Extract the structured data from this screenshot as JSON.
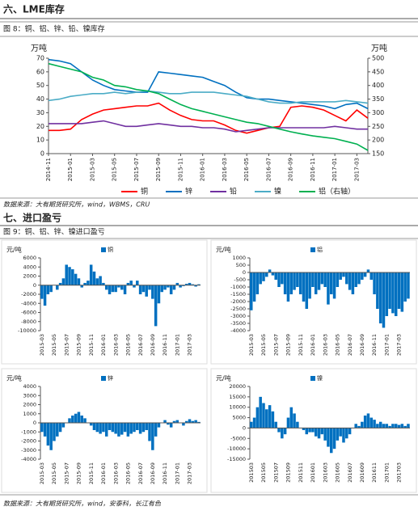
{
  "section6_title": "六、LME库存",
  "figure8_caption": "图 8：铜、铝、锌、铅、镍库存",
  "source1": "数据来源：大有期货研究所，wind，WBMS，CRU",
  "section7_title": "七、进口盈亏",
  "figure9_caption": "图 9：铜、铝、锌、镍进口盈亏",
  "source2": "数据来源：大有期货研究所，wind，安泰科，长江有色",
  "chart_data": [
    {
      "type": "line",
      "ylabel": "万吨",
      "y2label": "万吨",
      "legend": "bottom",
      "categories": [
        "2014-11",
        null,
        "2015-01",
        null,
        "2015-03",
        null,
        "2015-05",
        null,
        "2015-07",
        null,
        "2015-09",
        null,
        "2015-11",
        null,
        "2016-01",
        null,
        "2016-03",
        null,
        "2016-05",
        null,
        "2016-07",
        null,
        "2016-09",
        null,
        "2016-11",
        null,
        "2017-01",
        null,
        "2017-03",
        null
      ],
      "ylim": [
        0,
        70
      ],
      "yticks": [
        0,
        10,
        20,
        30,
        40,
        50,
        60,
        70
      ],
      "y2lim": [
        150,
        500
      ],
      "y2ticks": [
        150,
        200,
        250,
        300,
        350,
        400,
        450,
        500
      ],
      "series": [
        {
          "name": "铜",
          "color": "#ff0000",
          "values": [
            17,
            17,
            18,
            25,
            29,
            32,
            33,
            34,
            35,
            35,
            37,
            32,
            28,
            25,
            24,
            24,
            21,
            17,
            15,
            17,
            19,
            20,
            34,
            35,
            34,
            32,
            28,
            24,
            32,
            26
          ]
        },
        {
          "name": "锌",
          "color": "#0070c0",
          "values": [
            69,
            68,
            66,
            60,
            54,
            50,
            47,
            46,
            45,
            45,
            60,
            59,
            58,
            57,
            56,
            53,
            50,
            45,
            41,
            40,
            40,
            39,
            38,
            37,
            36,
            35,
            33,
            36,
            37,
            33
          ]
        },
        {
          "name": "铅",
          "color": "#7030a0",
          "values": [
            22,
            22,
            22,
            22,
            23,
            24,
            22,
            20,
            20,
            21,
            22,
            21,
            20,
            20,
            19,
            19,
            18,
            16,
            17,
            18,
            19,
            19,
            19,
            19,
            19,
            19,
            20,
            19,
            18,
            18
          ]
        },
        {
          "name": "镍",
          "color": "#4bacc6",
          "values": [
            39,
            40,
            42,
            43,
            44,
            44,
            45,
            44,
            45,
            46,
            45,
            44,
            44,
            45,
            45,
            45,
            44,
            43,
            42,
            40,
            38,
            37,
            37,
            38,
            38,
            38,
            38,
            39,
            38,
            37
          ]
        },
        {
          "name": "铝（右轴）",
          "color": "#00b050",
          "axis": "y2",
          "values": [
            480,
            470,
            460,
            450,
            430,
            420,
            400,
            395,
            385,
            380,
            370,
            350,
            330,
            315,
            305,
            295,
            285,
            275,
            265,
            260,
            250,
            240,
            230,
            222,
            215,
            210,
            205,
            195,
            185,
            162
          ]
        }
      ]
    },
    {
      "type": "bar",
      "ylabel": "元/吨",
      "legend": "top",
      "categories": [
        "2015-03",
        null,
        null,
        null,
        "2015-05",
        null,
        null,
        null,
        "2015-07",
        null,
        null,
        null,
        "2015-09",
        null,
        null,
        null,
        "2015-11",
        null,
        null,
        null,
        "2016-01",
        null,
        null,
        null,
        "2016-03",
        null,
        null,
        null,
        "2016-05",
        null,
        null,
        null,
        "2016-07",
        null,
        null,
        null,
        "2016-09",
        null,
        null,
        null,
        "2016-11",
        null,
        null,
        null,
        "2017-01",
        null,
        null,
        null,
        "2017-03",
        null,
        null,
        null
      ],
      "ylim": [
        -10000,
        6000
      ],
      "yticks": [
        -10000,
        -8000,
        -6000,
        -4000,
        -2000,
        0,
        2000,
        4000,
        6000
      ],
      "series": [
        {
          "name": "铜",
          "color": "#0070c0",
          "values": [
            -3000,
            -4500,
            -2000,
            -1500,
            0,
            -1000,
            500,
            1500,
            4500,
            4000,
            3500,
            2500,
            1500,
            -500,
            500,
            1000,
            4500,
            3000,
            1500,
            2000,
            500,
            -1000,
            -2000,
            -1500,
            -1500,
            -500,
            -1000,
            -2000,
            500,
            1000,
            -500,
            1000,
            -2000,
            -1500,
            -2500,
            -1000,
            -3000,
            -9000,
            -4000,
            -1500,
            -1000,
            -500,
            -2000,
            -1000,
            500,
            -500,
            -200,
            300,
            500,
            200,
            -300,
            200
          ]
        }
      ]
    },
    {
      "type": "bar",
      "ylabel": "元/吨",
      "legend": "top",
      "categories": [
        "2015-03",
        null,
        null,
        null,
        "2015-05",
        null,
        null,
        null,
        "2015-07",
        null,
        null,
        null,
        "2015-09",
        null,
        null,
        null,
        "2015-11",
        null,
        null,
        null,
        "2016-01",
        null,
        null,
        null,
        "2016-03",
        null,
        null,
        null,
        "2016-05",
        null,
        null,
        null,
        "2016-07",
        null,
        null,
        null,
        "2016-09",
        null,
        null,
        null,
        "2016-11",
        null,
        null,
        null,
        "2017-01",
        null,
        null,
        null,
        "2017-03",
        null,
        null,
        null
      ],
      "ylim": [
        -4000,
        1000
      ],
      "yticks": [
        -4000,
        -3500,
        -3000,
        -2500,
        -2000,
        -1500,
        -1000,
        -500,
        0,
        500,
        1000
      ],
      "series": [
        {
          "name": "铝",
          "color": "#0070c0",
          "values": [
            -2600,
            -2000,
            -1500,
            -800,
            -600,
            -300,
            200,
            -200,
            -500,
            -1000,
            -800,
            -1500,
            -2000,
            -1500,
            -1200,
            -1000,
            -1500,
            -2000,
            -2500,
            -1800,
            -1000,
            -1500,
            -1200,
            -800,
            -1000,
            -2200,
            -1500,
            -1800,
            -1000,
            -500,
            -300,
            -800,
            -1200,
            -1500,
            -1000,
            -800,
            -500,
            -300,
            200,
            -500,
            -1500,
            -2500,
            -3500,
            -3800,
            -3000,
            -2500,
            -2800,
            -3000,
            -2500,
            -2700,
            -2000,
            -1800
          ]
        }
      ]
    },
    {
      "type": "bar",
      "ylabel": "元/吨",
      "legend": "top",
      "categories": [
        "2015-03",
        null,
        null,
        null,
        "2015-05",
        null,
        null,
        null,
        "2015-07",
        null,
        null,
        null,
        "2015-09",
        null,
        null,
        null,
        "2015-11",
        null,
        null,
        null,
        "2016-01",
        null,
        null,
        null,
        "2016-03",
        null,
        null,
        null,
        "2016-05",
        null,
        null,
        null,
        "2016-07",
        null,
        null,
        null,
        "2016-09",
        null,
        null,
        null,
        "2016-11",
        null,
        null,
        null,
        "2017-01",
        null,
        null,
        null,
        "2017-03",
        null,
        null,
        null
      ],
      "ylim": [
        -4000,
        4000
      ],
      "yticks": [
        -4000,
        -3000,
        -2000,
        -1000,
        0,
        1000,
        2000,
        3000,
        4000
      ],
      "series": [
        {
          "name": "锌",
          "color": "#0070c0",
          "values": [
            -1000,
            -1500,
            -2500,
            -3000,
            -2000,
            -1500,
            -1000,
            -500,
            0,
            500,
            800,
            1000,
            1200,
            800,
            500,
            0,
            -300,
            -800,
            -1000,
            -1200,
            -1000,
            -1500,
            -800,
            -1000,
            -1200,
            -1500,
            -1300,
            -1000,
            -1500,
            -1200,
            -1000,
            -800,
            -1200,
            -1000,
            -800,
            -2000,
            -3000,
            -1500,
            -500,
            0,
            300,
            -200,
            -500,
            200,
            300,
            0,
            -300,
            200,
            400,
            200,
            300,
            100
          ]
        }
      ]
    },
    {
      "type": "bar",
      "ylabel": "元/吨",
      "legend": "top",
      "categories": [
        "201503",
        null,
        null,
        null,
        "201505",
        null,
        null,
        null,
        "201507",
        null,
        null,
        null,
        "201509",
        null,
        null,
        null,
        "201511",
        null,
        null,
        null,
        "201601",
        null,
        null,
        null,
        "201603",
        null,
        null,
        null,
        "201605",
        null,
        null,
        null,
        "201607",
        null,
        null,
        null,
        "201609",
        null,
        null,
        null,
        "201611",
        null,
        null,
        null,
        "201701",
        null,
        null,
        null,
        "201703",
        null,
        null,
        null
      ],
      "ylim": [
        -15000,
        20000
      ],
      "yticks": [
        -15000,
        -10000,
        -5000,
        0,
        5000,
        10000,
        15000,
        20000
      ],
      "series": [
        {
          "name": "镍",
          "color": "#0070c0",
          "values": [
            3000,
            5000,
            10000,
            15000,
            12000,
            9000,
            11000,
            8000,
            3000,
            -2000,
            -5000,
            -3000,
            5000,
            10000,
            7000,
            3000,
            0,
            -1000,
            -3000,
            -2000,
            -2000,
            -4000,
            -5000,
            -3000,
            -6000,
            -9000,
            -12000,
            -10000,
            -6000,
            -4000,
            -7000,
            -5000,
            -3000,
            0,
            2000,
            1000,
            3000,
            6000,
            7000,
            5000,
            4000,
            2000,
            3000,
            2000,
            2000,
            1000,
            2000,
            2000,
            1500,
            2000,
            1000,
            2000
          ]
        }
      ]
    }
  ]
}
